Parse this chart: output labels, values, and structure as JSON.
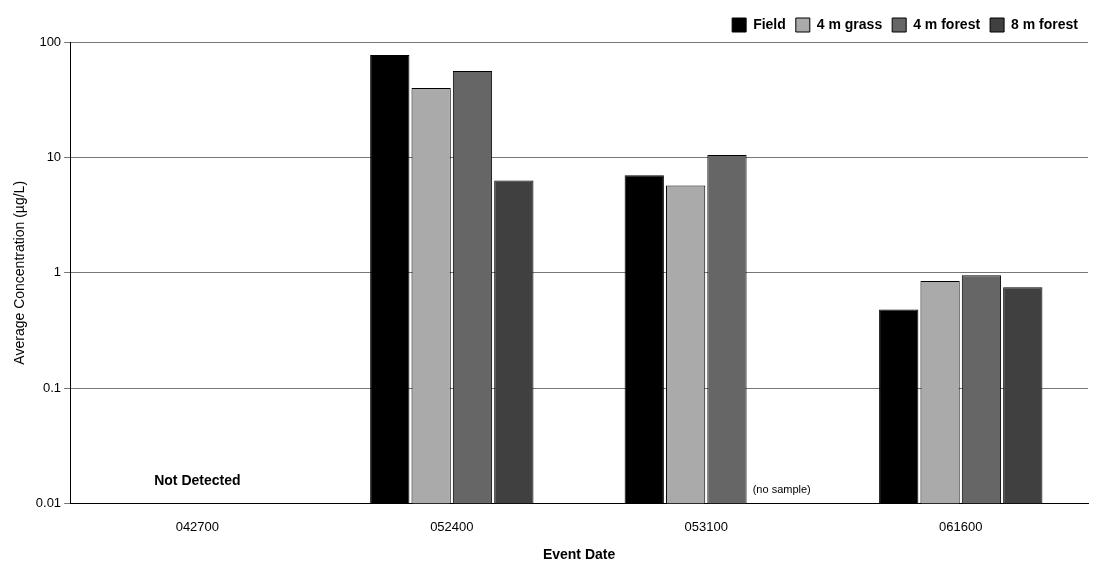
{
  "chart_data": {
    "type": "bar",
    "xlabel": "Event Date",
    "ylabel": "Average Concentration (µg/L)",
    "categories": [
      "042700",
      "052400",
      "053100",
      "061600"
    ],
    "series": [
      {
        "name": "Field",
        "color": "#000000",
        "values": [
          null,
          77,
          7.0,
          0.48
        ]
      },
      {
        "name": "4 m grass",
        "color": "#aaaaaa",
        "values": [
          null,
          40,
          5.7,
          0.85
        ]
      },
      {
        "name": "4 m forest",
        "color": "#666666",
        "values": [
          null,
          56,
          10.5,
          0.95
        ]
      },
      {
        "name": "8 m forest",
        "color": "#404040",
        "values": [
          null,
          6.3,
          null,
          0.75
        ]
      }
    ],
    "log": true,
    "ylim": [
      0.01,
      100
    ],
    "yticks": [
      0.01,
      0.1,
      1,
      10,
      100
    ],
    "grid": "y",
    "legend": "top right",
    "annotations": [
      "Not Detected",
      "(no sample)"
    ]
  }
}
